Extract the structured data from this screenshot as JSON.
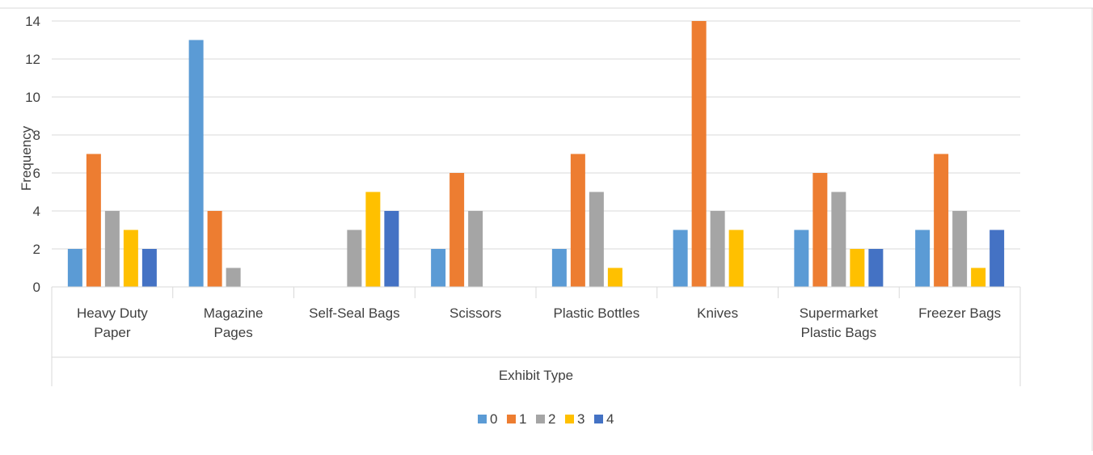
{
  "chart_data": {
    "type": "bar",
    "title": "",
    "xlabel": "Exhibit Type",
    "ylabel": "Frequency",
    "ylim": [
      0,
      14
    ],
    "yticks": [
      0,
      2,
      4,
      6,
      8,
      10,
      12,
      14
    ],
    "grid": true,
    "legend_position": "bottom",
    "categories": [
      [
        "Heavy Duty",
        "Paper"
      ],
      [
        "Magazine",
        "Pages"
      ],
      [
        "Self-Seal Bags"
      ],
      [
        "Scissors"
      ],
      [
        "Plastic Bottles"
      ],
      [
        "Knives"
      ],
      [
        "Supermarket",
        "Plastic Bags"
      ],
      [
        "Freezer Bags"
      ]
    ],
    "series": [
      {
        "name": "0",
        "color": "#5B9BD5",
        "values": [
          2,
          13,
          0,
          2,
          2,
          3,
          3,
          3
        ]
      },
      {
        "name": "1",
        "color": "#ED7D31",
        "values": [
          7,
          4,
          0,
          6,
          7,
          14,
          6,
          7
        ]
      },
      {
        "name": "2",
        "color": "#A5A5A5",
        "values": [
          4,
          1,
          3,
          4,
          5,
          4,
          5,
          4
        ]
      },
      {
        "name": "3",
        "color": "#FFC000",
        "values": [
          3,
          0,
          5,
          0,
          1,
          3,
          2,
          1
        ]
      },
      {
        "name": "4",
        "color": "#4472C4",
        "values": [
          2,
          0,
          4,
          0,
          0,
          0,
          2,
          3
        ]
      }
    ]
  }
}
